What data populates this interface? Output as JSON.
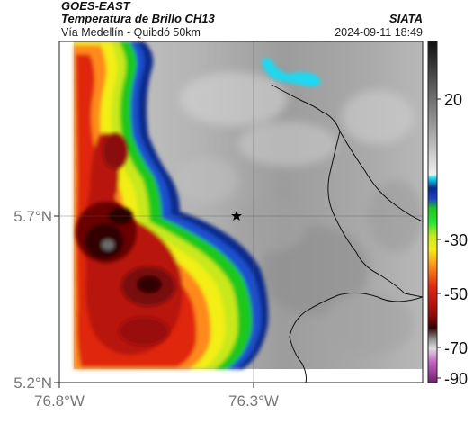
{
  "header": {
    "satellite": "GOES-EAST",
    "product": "Temperatura de Brillo CH13",
    "route": "Vía Medellín - Quibdó 50km",
    "organization": "SIATA",
    "timestamp": "2024-09-11 18:49"
  },
  "axes": {
    "lat_labels": [
      "5.7°N",
      "5.2°N"
    ],
    "lon_labels": [
      "76.8°W",
      "76.3°W"
    ]
  },
  "colorbar": {
    "labels": [
      "20",
      "-30",
      "-50",
      "-70",
      "-90"
    ]
  },
  "colors": {
    "warm_cloud_gray": "#b8b8b8",
    "cold_cloud_red": "#cc1a10",
    "cold_cloud_darkred": "#3a0505",
    "ring_blue": "#0a2a8c",
    "ring_cyan": "#1ed8f0",
    "ring_green": "#1ec81e",
    "ring_yellow": "#f2ee14",
    "ring_orange": "#ff8a1a"
  },
  "marker": {
    "icon": "star-icon"
  }
}
